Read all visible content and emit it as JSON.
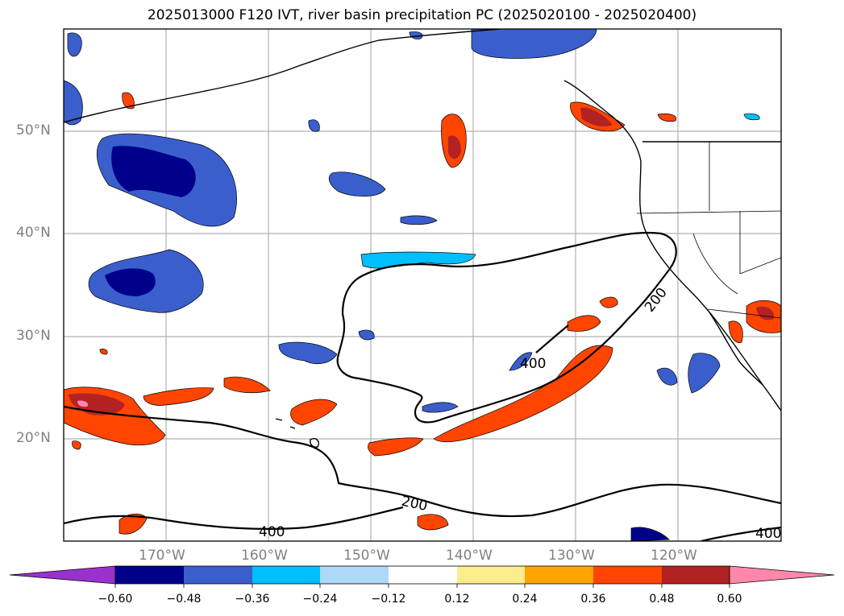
{
  "title": "2025013000 F120 IVT, river basin precipitation PC (2025020100 - 2025020400)",
  "map": {
    "lat_labels": [
      "50°N",
      "40°N",
      "30°N",
      "20°N"
    ],
    "lon_labels": [
      "170°W",
      "160°W",
      "150°W",
      "140°W",
      "130°W",
      "120°W"
    ],
    "contour_labels": [
      "200",
      "200",
      "400",
      "400",
      "400"
    ],
    "contour_levels": [
      200,
      400
    ],
    "gridlines": true
  },
  "colorbar": {
    "extend": "both",
    "ticks": [
      "−0.60",
      "−0.48",
      "−0.36",
      "−0.24",
      "−0.12",
      "0.12",
      "0.24",
      "0.36",
      "0.48",
      "0.60"
    ],
    "colors": [
      "#9932cc",
      "#00008b",
      "#3a5fcd",
      "#00bfff",
      "#add8f6",
      "#ffffff",
      "#fdec8c",
      "#ffa500",
      "#ff4500",
      "#b22222",
      "#ff88aa"
    ]
  }
}
